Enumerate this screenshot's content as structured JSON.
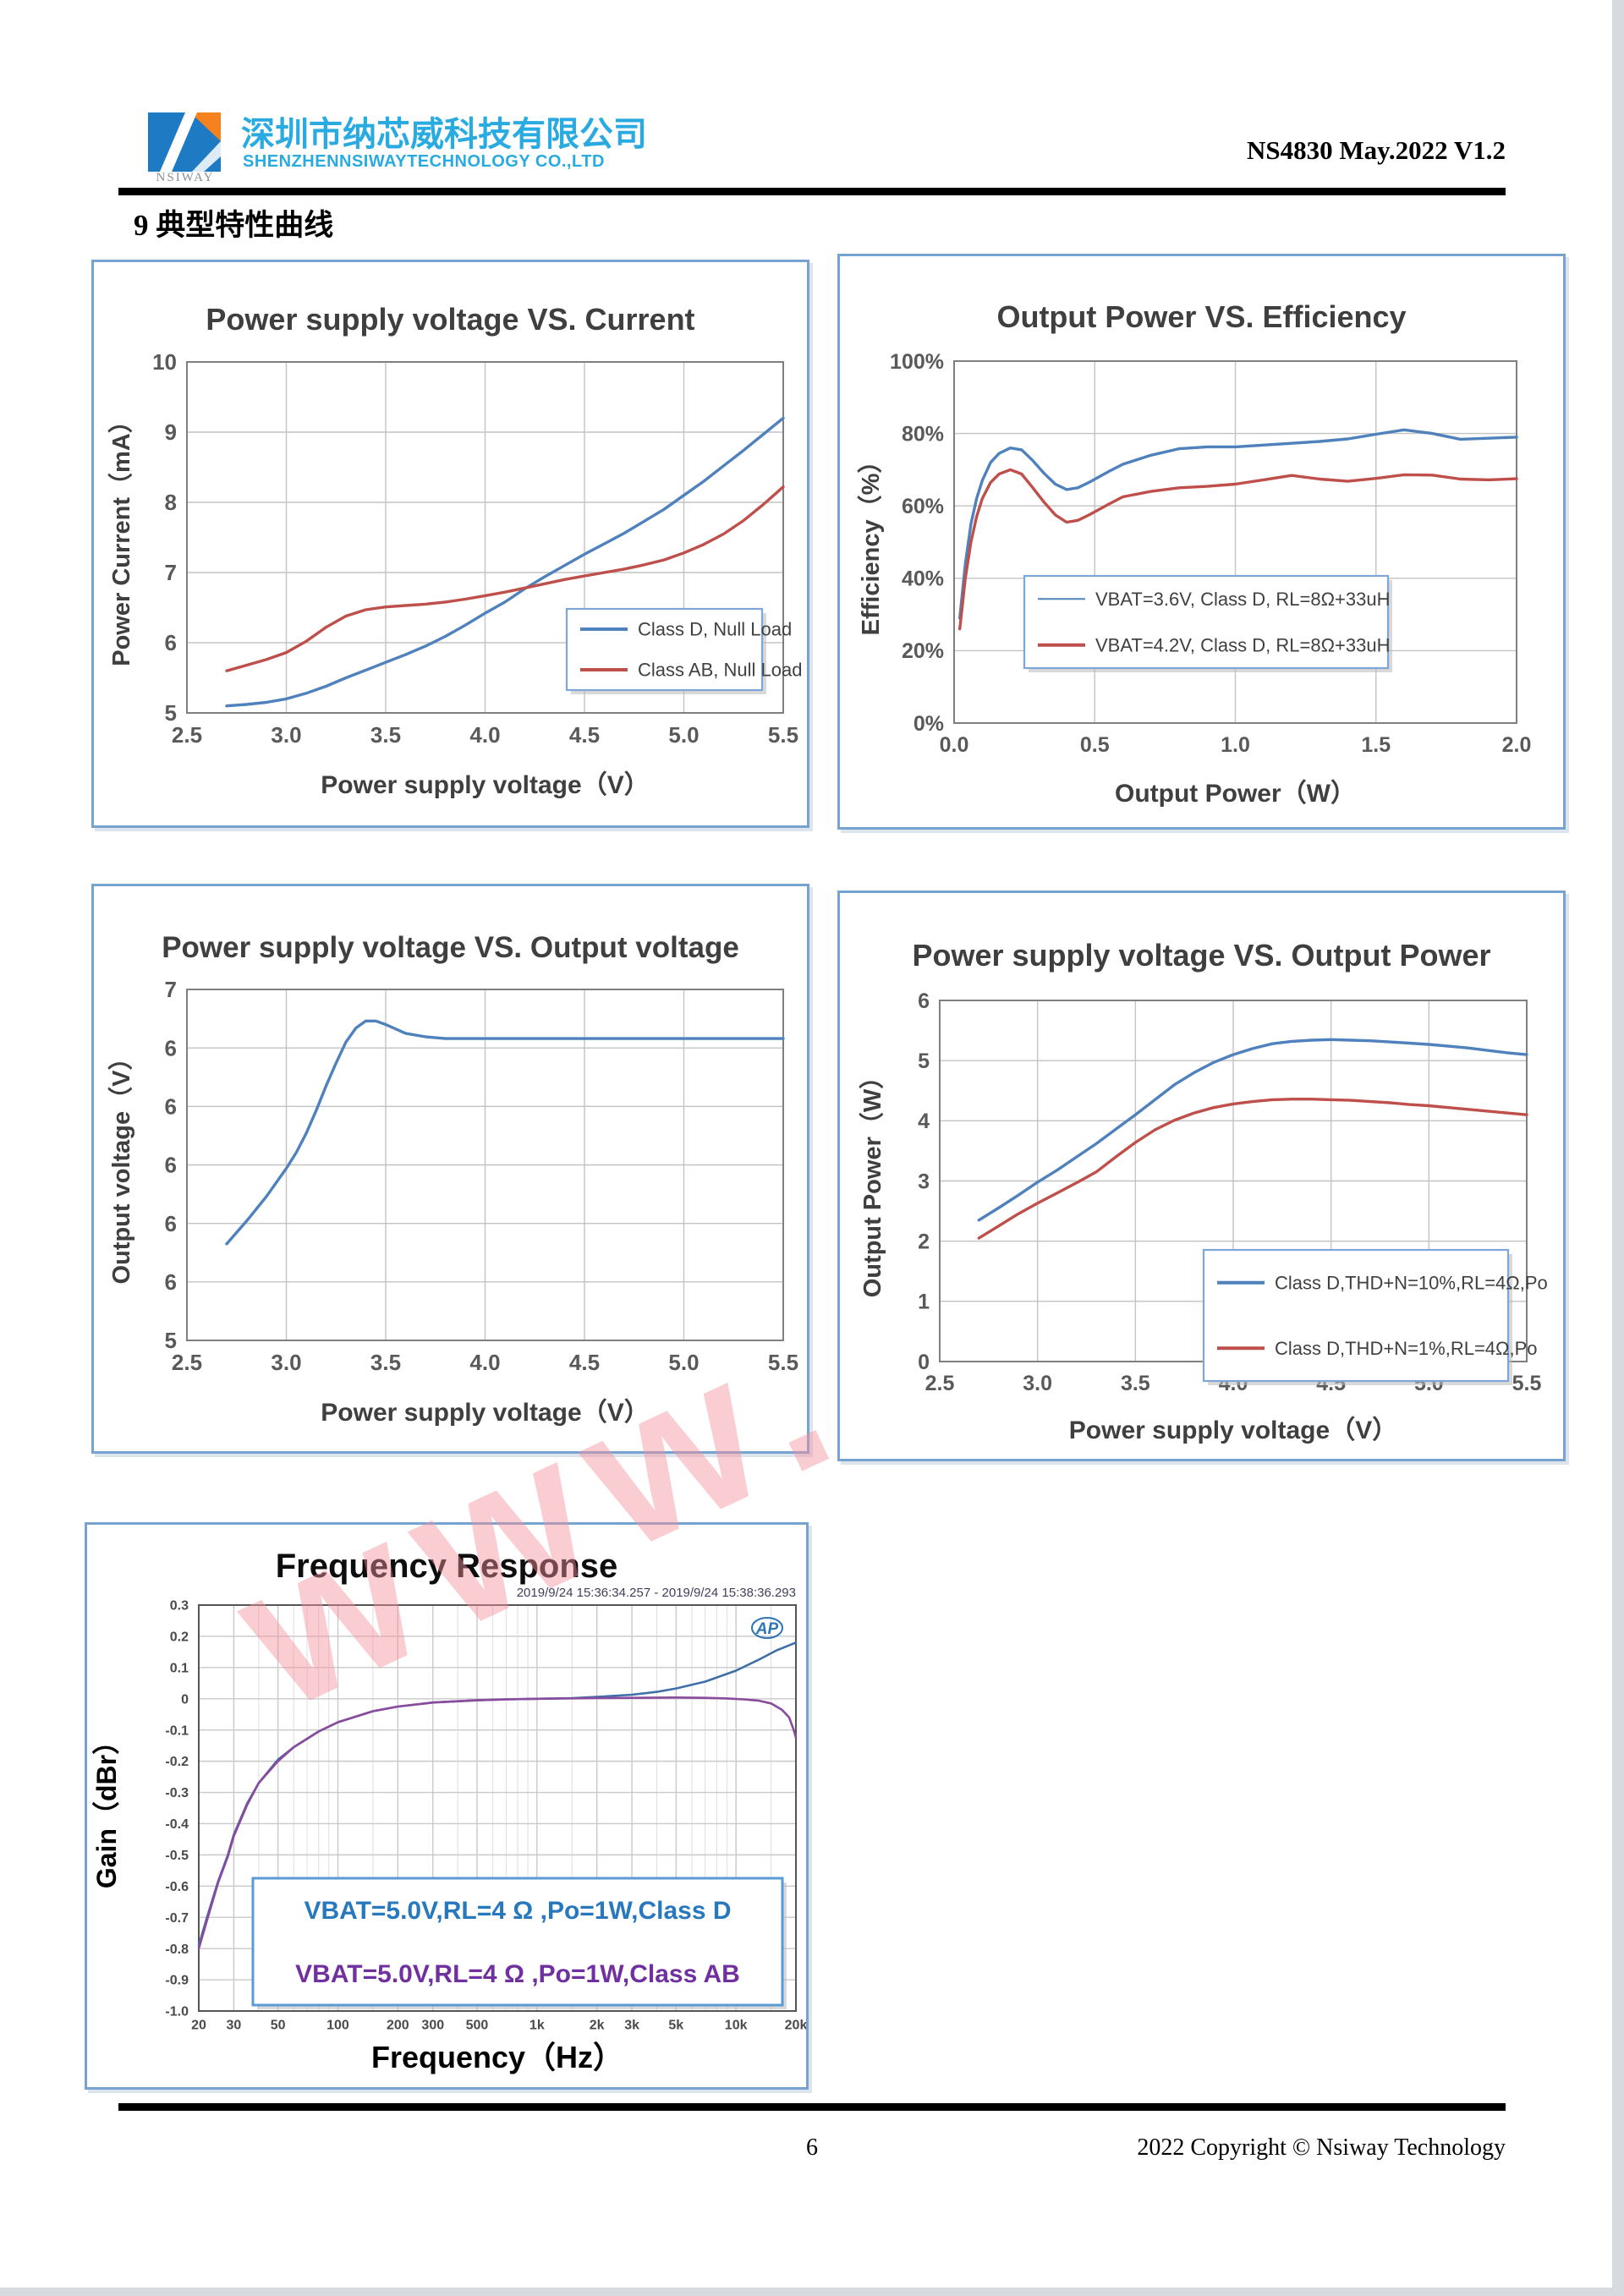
{
  "header": {
    "logo_text": "NSIWAY",
    "company_cn": "深圳市纳芯威科技有限公司",
    "company_en": "SHENZHENNSIWAYTECHNOLOGY CO.,LTD",
    "doc_ref": "NS4830 May.2022 V1.2",
    "accent_color": "#29abe2"
  },
  "section_title": "9  典型特性曲线",
  "watermark": {
    "text": "www.",
    "color": "#f4919e"
  },
  "footer": {
    "page_number": "6",
    "copyright": "2022 Copyright © Nsiway Technology"
  },
  "chart_data": [
    {
      "type": "line",
      "title": "Power supply voltage VS. Current",
      "xlabel": "Power supply voltage（V）",
      "ylabel": "Power Current（mA）",
      "xlim": [
        2.5,
        5.5
      ],
      "ylim": [
        5,
        10
      ],
      "grid": true,
      "xtick_vals": [
        2.5,
        3.0,
        3.5,
        4.0,
        4.5,
        5.0,
        5.5
      ],
      "xtick_labels": [
        "2.5",
        "3.0",
        "3.5",
        "4.0",
        "4.5",
        "5.0",
        "5.5"
      ],
      "ytick_vals": [
        5,
        6,
        7,
        8,
        9,
        10
      ],
      "ytick_labels": [
        "5",
        "6",
        "7",
        "8",
        "9",
        "10"
      ],
      "legend": [
        {
          "label": "Class D, Null Load",
          "color": "#4f81bd"
        },
        {
          "label": "Class AB, Null Load",
          "color": "#bf4f4b"
        }
      ],
      "legend_position": "bottom-right",
      "series": [
        {
          "name": "Class D, Null Load",
          "color": "#4f81bd",
          "x": [
            2.7,
            2.8,
            2.9,
            3.0,
            3.1,
            3.2,
            3.3,
            3.4,
            3.5,
            3.6,
            3.7,
            3.8,
            3.9,
            4.0,
            4.1,
            4.2,
            4.3,
            4.4,
            4.5,
            4.6,
            4.7,
            4.8,
            4.9,
            5.0,
            5.1,
            5.2,
            5.3,
            5.4,
            5.5
          ],
          "y": [
            5.1,
            5.12,
            5.15,
            5.2,
            5.28,
            5.38,
            5.5,
            5.61,
            5.72,
            5.83,
            5.95,
            6.09,
            6.25,
            6.42,
            6.58,
            6.77,
            6.94,
            7.1,
            7.26,
            7.41,
            7.56,
            7.73,
            7.9,
            8.1,
            8.3,
            8.52,
            8.74,
            8.97,
            9.2
          ]
        },
        {
          "name": "Class AB, Null Load",
          "color": "#bf4f4b",
          "x": [
            2.7,
            2.8,
            2.9,
            3.0,
            3.1,
            3.2,
            3.3,
            3.4,
            3.5,
            3.6,
            3.7,
            3.8,
            3.9,
            4.0,
            4.1,
            4.2,
            4.3,
            4.4,
            4.5,
            4.6,
            4.7,
            4.8,
            4.9,
            5.0,
            5.1,
            5.2,
            5.3,
            5.4,
            5.5
          ],
          "y": [
            5.6,
            5.68,
            5.76,
            5.86,
            6.02,
            6.22,
            6.38,
            6.47,
            6.51,
            6.53,
            6.55,
            6.58,
            6.62,
            6.67,
            6.72,
            6.78,
            6.84,
            6.9,
            6.95,
            7.0,
            7.05,
            7.11,
            7.18,
            7.28,
            7.4,
            7.55,
            7.74,
            7.97,
            8.22
          ]
        }
      ]
    },
    {
      "type": "line",
      "title": "Output Power  VS. Efficiency",
      "xlabel": "Output Power（W）",
      "ylabel": "Efficiency（%）",
      "xlim": [
        0,
        2
      ],
      "ylim": [
        0,
        100
      ],
      "grid": true,
      "xtick_vals": [
        0,
        0.5,
        1.0,
        1.5,
        2.0
      ],
      "xtick_labels": [
        "0.0",
        "0.5",
        "1.0",
        "1.5",
        "2.0"
      ],
      "ytick_vals": [
        0,
        20,
        40,
        60,
        80,
        100
      ],
      "ytick_labels": [
        "0%",
        "20%",
        "40%",
        "60%",
        "80%",
        "100%"
      ],
      "legend": [
        {
          "label": "VBAT=3.6V, Class D, RL=8Ω+33uH",
          "color": "#4f81bd"
        },
        {
          "label": "VBAT=4.2V, Class D, RL=8Ω+33uH",
          "color": "#bf4f4b"
        }
      ],
      "legend_position": "center",
      "series": [
        {
          "name": "VBAT=3.6V, Class D, RL=8Ω+33uH",
          "color": "#4f81bd",
          "x": [
            0.02,
            0.04,
            0.06,
            0.08,
            0.1,
            0.13,
            0.16,
            0.2,
            0.24,
            0.28,
            0.32,
            0.36,
            0.4,
            0.44,
            0.48,
            0.55,
            0.6,
            0.7,
            0.8,
            0.9,
            1.0,
            1.1,
            1.2,
            1.3,
            1.4,
            1.5,
            1.6,
            1.7,
            1.8,
            1.9,
            2.0
          ],
          "y": [
            29,
            44,
            55,
            62,
            67,
            72,
            74.5,
            76,
            75.5,
            72.5,
            69,
            66,
            64.5,
            65,
            66.5,
            69.5,
            71.5,
            74,
            75.8,
            76.3,
            76.3,
            76.8,
            77.3,
            77.8,
            78.5,
            79.8,
            81,
            80,
            78.4,
            78.7,
            79
          ]
        },
        {
          "name": "VBAT=4.2V, Class D, RL=8Ω+33uH",
          "color": "#bf4f4b",
          "x": [
            0.02,
            0.04,
            0.06,
            0.08,
            0.1,
            0.13,
            0.16,
            0.2,
            0.24,
            0.28,
            0.32,
            0.36,
            0.4,
            0.44,
            0.48,
            0.55,
            0.6,
            0.7,
            0.8,
            0.9,
            1.0,
            1.1,
            1.2,
            1.3,
            1.4,
            1.5,
            1.6,
            1.7,
            1.8,
            1.9,
            2.0
          ],
          "y": [
            26,
            40,
            50,
            57,
            62,
            66.5,
            68.8,
            70,
            68.8,
            65,
            61,
            57.5,
            55.5,
            56,
            57.5,
            60.5,
            62.5,
            64,
            65,
            65.4,
            66,
            67.2,
            68.4,
            67.4,
            66.8,
            67.6,
            68.6,
            68.5,
            67.4,
            67.2,
            67.5
          ]
        }
      ]
    },
    {
      "type": "line",
      "title": "Power supply voltage VS. Output voltage",
      "xlabel": "Power supply voltage（V）",
      "ylabel": "Output voltage（V）",
      "xlim": [
        2.5,
        5.5
      ],
      "ylim": [
        5,
        7
      ],
      "grid": true,
      "xtick_vals": [
        2.5,
        3.0,
        3.5,
        4.0,
        4.5,
        5.0,
        5.5
      ],
      "xtick_labels": [
        "2.5",
        "3.0",
        "3.5",
        "4.0",
        "4.5",
        "5.0",
        "5.5"
      ],
      "ytick_vals": [
        5,
        5.3333,
        5.6667,
        6,
        6.3333,
        6.6667,
        7
      ],
      "ytick_labels": [
        "5",
        "6",
        "6",
        "6",
        "6",
        "6",
        "7"
      ],
      "legend": [],
      "legend_position": "none",
      "series": [
        {
          "name": "Output voltage",
          "color": "#4f81bd",
          "x": [
            2.7,
            2.8,
            2.9,
            3.0,
            3.05,
            3.1,
            3.15,
            3.2,
            3.25,
            3.3,
            3.35,
            3.4,
            3.45,
            3.5,
            3.6,
            3.7,
            3.8,
            3.9,
            4.0,
            4.2,
            4.4,
            4.6,
            4.8,
            5.0,
            5.2,
            5.4,
            5.5
          ],
          "y": [
            5.55,
            5.68,
            5.82,
            5.98,
            6.07,
            6.18,
            6.31,
            6.45,
            6.58,
            6.7,
            6.78,
            6.82,
            6.82,
            6.8,
            6.75,
            6.73,
            6.72,
            6.72,
            6.72,
            6.72,
            6.72,
            6.72,
            6.72,
            6.72,
            6.72,
            6.72,
            6.72
          ]
        }
      ]
    },
    {
      "type": "line",
      "title": "Power supply voltage VS. Output Power",
      "xlabel": "Power supply voltage（V）",
      "ylabel": "Output Power（W）",
      "xlim": [
        2.5,
        5.5
      ],
      "ylim": [
        0,
        6
      ],
      "grid": true,
      "xtick_vals": [
        2.5,
        3.0,
        3.5,
        4.0,
        4.5,
        5.0,
        5.5
      ],
      "xtick_labels": [
        "2.5",
        "3.0",
        "3.5",
        "4.0",
        "4.5",
        "5.0",
        "5.5"
      ],
      "ytick_vals": [
        0,
        1,
        2,
        3,
        4,
        5,
        6
      ],
      "ytick_labels": [
        "0",
        "1",
        "2",
        "3",
        "4",
        "5",
        "6"
      ],
      "legend": [
        {
          "label": "Class D,THD+N=10%,RL=4Ω,Po",
          "color": "#4f81bd"
        },
        {
          "label": "Class D,THD+N=1%,RL=4Ω,Po",
          "color": "#bf4f4b"
        }
      ],
      "legend_position": "bottom-right",
      "series": [
        {
          "name": "Class D,THD+N=10%,RL=4Ω,Po",
          "color": "#4f81bd",
          "x": [
            2.7,
            2.8,
            2.9,
            3.0,
            3.1,
            3.2,
            3.3,
            3.4,
            3.5,
            3.6,
            3.7,
            3.8,
            3.9,
            4.0,
            4.1,
            4.2,
            4.3,
            4.4,
            4.5,
            4.6,
            4.7,
            4.8,
            4.9,
            5.0,
            5.1,
            5.2,
            5.3,
            5.4,
            5.5
          ],
          "y": [
            2.35,
            2.55,
            2.76,
            2.98,
            3.18,
            3.4,
            3.62,
            3.86,
            4.1,
            4.35,
            4.6,
            4.8,
            4.97,
            5.1,
            5.2,
            5.28,
            5.32,
            5.34,
            5.35,
            5.34,
            5.33,
            5.31,
            5.29,
            5.27,
            5.24,
            5.21,
            5.17,
            5.13,
            5.1
          ]
        },
        {
          "name": "Class D,THD+N=1%,RL=4Ω,Po",
          "color": "#bf4f4b",
          "x": [
            2.7,
            2.8,
            2.9,
            3.0,
            3.1,
            3.2,
            3.3,
            3.4,
            3.5,
            3.6,
            3.7,
            3.8,
            3.9,
            4.0,
            4.1,
            4.2,
            4.3,
            4.4,
            4.5,
            4.6,
            4.7,
            4.8,
            4.9,
            5.0,
            5.1,
            5.2,
            5.3,
            5.4,
            5.5
          ],
          "y": [
            2.05,
            2.25,
            2.45,
            2.63,
            2.8,
            2.97,
            3.15,
            3.4,
            3.64,
            3.85,
            4.01,
            4.13,
            4.22,
            4.28,
            4.32,
            4.35,
            4.36,
            4.36,
            4.35,
            4.34,
            4.32,
            4.3,
            4.27,
            4.25,
            4.22,
            4.19,
            4.16,
            4.13,
            4.1
          ]
        }
      ]
    },
    {
      "type": "line",
      "xscale": "log",
      "title": "Frequency Response",
      "xlabel": "Frequency（Hz）",
      "ylabel": "Gain（dBr）",
      "timestamp": "2019/9/24 15:36:34.257 - 2019/9/24 15:38:36.293",
      "logo_badge": "AP",
      "xlim": [
        20,
        20000
      ],
      "ylim": [
        -1.0,
        0.3
      ],
      "grid": true,
      "xtick_vals": [
        20,
        30,
        50,
        100,
        200,
        300,
        500,
        1000,
        2000,
        3000,
        5000,
        10000,
        20000
      ],
      "xtick_labels": [
        "20",
        "30",
        "50",
        "100",
        "200",
        "300",
        "500",
        "1k",
        "2k",
        "3k",
        "5k",
        "10k",
        "20k"
      ],
      "minor_xticks": [
        40,
        60,
        70,
        80,
        90,
        150,
        400,
        600,
        700,
        800,
        900,
        1500,
        4000,
        6000,
        7000,
        8000,
        9000,
        15000
      ],
      "ytick_vals": [
        0.3,
        0.2,
        0.1,
        0,
        -0.1,
        -0.2,
        -0.3,
        -0.4,
        -0.5,
        -0.6,
        -0.7,
        -0.8,
        -0.9,
        -1.0
      ],
      "ytick_labels": [
        "0.3",
        "0.2",
        "0.1",
        "0",
        "-0.1",
        "-0.2",
        "-0.3",
        "-0.4",
        "-0.5",
        "-0.6",
        "-0.7",
        "-0.8",
        "-0.9",
        "-1.0"
      ],
      "legend": [
        {
          "label": "VBAT=5.0V,RL=4 Ω ,Po=1W,Class D",
          "color": "#2878be"
        },
        {
          "label": "VBAT=5.0V,RL=4 Ω ,Po=1W,Class AB",
          "color": "#7030a0"
        }
      ],
      "legend_position": "text-box",
      "series": [
        {
          "name": "Class D",
          "color": "#3f6fa8",
          "x": [
            20,
            22,
            25,
            28,
            30,
            35,
            40,
            50,
            60,
            80,
            100,
            150,
            200,
            300,
            500,
            700,
            1000,
            1500,
            2000,
            3000,
            4000,
            5000,
            7000,
            10000,
            13000,
            16000,
            18000,
            20000
          ],
          "y": [
            -0.79,
            -0.7,
            -0.585,
            -0.5,
            -0.435,
            -0.335,
            -0.27,
            -0.195,
            -0.155,
            -0.105,
            -0.075,
            -0.04,
            -0.025,
            -0.012,
            -0.005,
            -0.002,
            0,
            0.002,
            0.006,
            0.013,
            0.022,
            0.033,
            0.055,
            0.09,
            0.125,
            0.155,
            0.168,
            0.18
          ]
        },
        {
          "name": "Class AB",
          "color": "#8a4a9d",
          "x": [
            20,
            22,
            25,
            28,
            30,
            35,
            40,
            50,
            60,
            80,
            100,
            150,
            200,
            300,
            500,
            700,
            1000,
            2000,
            3000,
            5000,
            7000,
            9000,
            11000,
            13000,
            15000,
            17000,
            18500,
            19500,
            20000
          ],
          "y": [
            -0.8,
            -0.71,
            -0.59,
            -0.505,
            -0.44,
            -0.34,
            -0.27,
            -0.2,
            -0.155,
            -0.105,
            -0.075,
            -0.04,
            -0.025,
            -0.012,
            -0.005,
            -0.002,
            0,
            0.002,
            0.003,
            0.004,
            0.003,
            0.001,
            -0.002,
            -0.006,
            -0.015,
            -0.035,
            -0.06,
            -0.1,
            -0.125
          ]
        }
      ]
    }
  ]
}
